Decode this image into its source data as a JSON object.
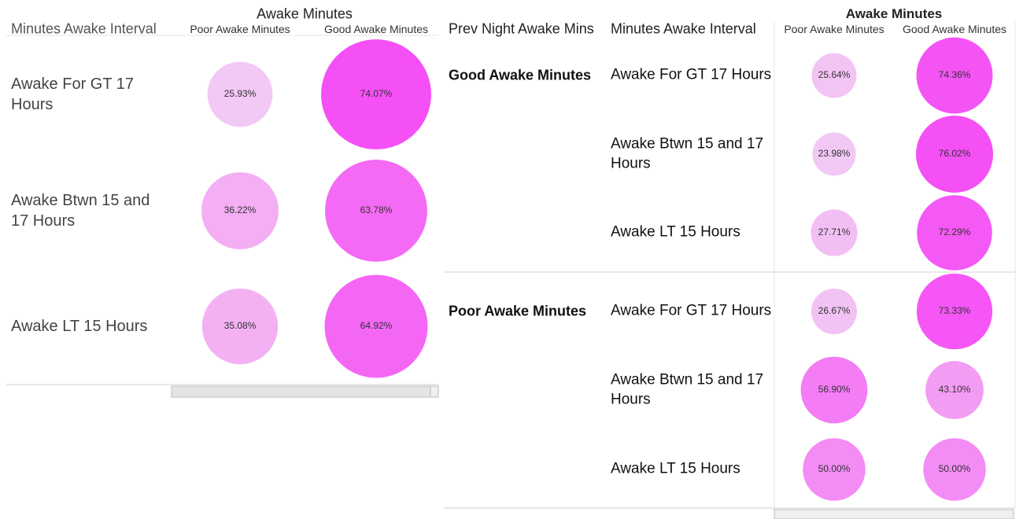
{
  "chart_data": [
    {
      "type": "bubble",
      "title": "Awake Minutes",
      "row_header": "Minutes Awake Interval",
      "categories": [
        "Awake For GT 17 Hours",
        "Awake Btwn 15 and 17 Hours",
        "Awake LT 15 Hours"
      ],
      "series": [
        {
          "name": "Poor Awake Minutes",
          "values": [
            25.93,
            36.22,
            35.08
          ],
          "value_labels": [
            "25.93%",
            "36.22%",
            "35.08%"
          ]
        },
        {
          "name": "Good Awake Minutes",
          "values": [
            74.07,
            63.78,
            64.92
          ],
          "value_labels": [
            "74.07%",
            "63.78%",
            "64.92%"
          ]
        }
      ],
      "color_range": [
        "#f2c8f4",
        "#f550f5"
      ]
    },
    {
      "type": "bubble",
      "title": "Awake Minutes",
      "group_header": "Prev Night Awake Mins",
      "row_header": "Minutes Awake Interval",
      "groups": [
        "Good Awake Minutes",
        "Poor Awake Minutes"
      ],
      "categories": [
        "Awake For GT 17 Hours",
        "Awake Btwn 15 and 17 Hours",
        "Awake LT 15 Hours",
        "Awake For GT 17 Hours",
        "Awake Btwn 15 and 17 Hours",
        "Awake LT 15 Hours"
      ],
      "series": [
        {
          "name": "Poor Awake Minutes",
          "values": [
            25.64,
            23.98,
            27.71,
            26.67,
            56.9,
            50.0
          ],
          "value_labels": [
            "25.64%",
            "23.98%",
            "27.71%",
            "26.67%",
            "56.90%",
            "50.00%"
          ]
        },
        {
          "name": "Good Awake Minutes",
          "values": [
            74.36,
            76.02,
            72.29,
            73.33,
            43.1,
            50.0
          ],
          "value_labels": [
            "74.36%",
            "76.02%",
            "72.29%",
            "73.33%",
            "43.10%",
            "50.00%"
          ]
        }
      ],
      "color_range": [
        "#f2c8f4",
        "#f550f5"
      ]
    }
  ]
}
